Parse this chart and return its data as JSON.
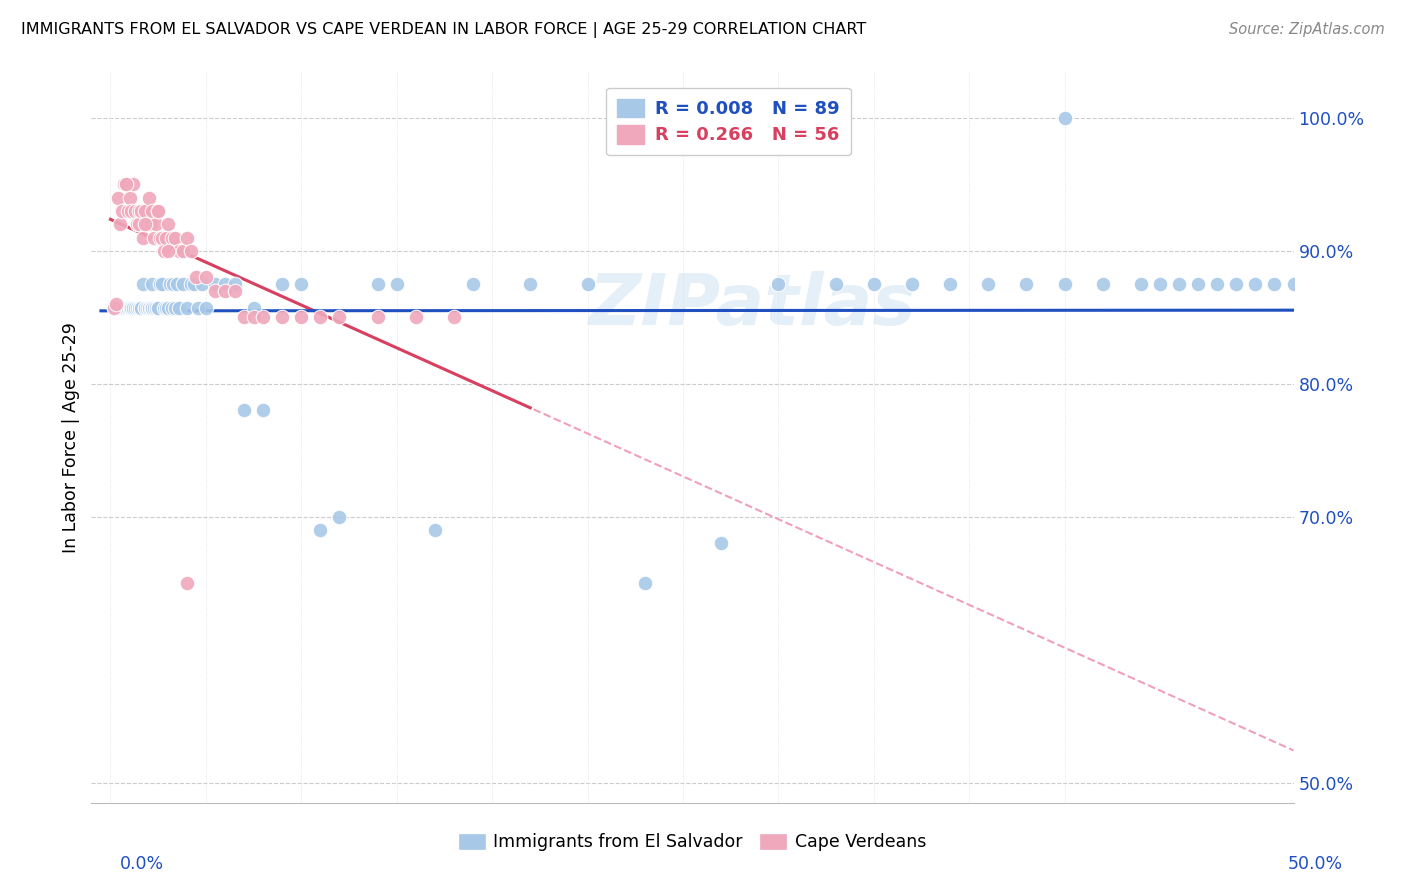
{
  "title": "IMMIGRANTS FROM EL SALVADOR VS CAPE VERDEAN IN LABOR FORCE | AGE 25-29 CORRELATION CHART",
  "source": "Source: ZipAtlas.com",
  "ylabel": "In Labor Force | Age 25-29",
  "y_tick_labels": [
    "100.0%",
    "90.0%",
    "80.0%",
    "70.0%",
    "50.0%"
  ],
  "y_tick_values": [
    1.0,
    0.9,
    0.8,
    0.7,
    0.5
  ],
  "x_range": [
    0.0,
    0.5
  ],
  "y_range": [
    0.5,
    1.03
  ],
  "blue_color": "#a8c8e8",
  "pink_color": "#f0a8bc",
  "blue_line_color": "#2050c0",
  "pink_line_color": "#d84060",
  "pink_dash_color": "#f0a0b8",
  "legend_blue_r": "0.008",
  "legend_blue_n": "89",
  "legend_pink_r": "0.266",
  "legend_pink_n": "56",
  "watermark": "ZIPatlas",
  "blue_scatter_x": [
    0.002,
    0.003,
    0.004,
    0.005,
    0.005,
    0.006,
    0.007,
    0.008,
    0.009,
    0.009,
    0.01,
    0.01,
    0.011,
    0.012,
    0.012,
    0.013,
    0.014,
    0.015,
    0.015,
    0.016,
    0.016,
    0.017,
    0.018,
    0.018,
    0.019,
    0.02,
    0.02,
    0.021,
    0.022,
    0.022,
    0.023,
    0.024,
    0.025,
    0.025,
    0.026,
    0.027,
    0.028,
    0.029,
    0.03,
    0.031,
    0.032,
    0.033,
    0.034,
    0.035,
    0.036,
    0.038,
    0.04,
    0.042,
    0.044,
    0.046,
    0.048,
    0.05,
    0.055,
    0.06,
    0.065,
    0.07,
    0.075,
    0.08,
    0.09,
    0.1,
    0.11,
    0.12,
    0.14,
    0.15,
    0.17,
    0.19,
    0.22,
    0.25,
    0.28,
    0.32,
    0.35,
    0.38,
    0.4,
    0.42,
    0.44,
    0.46,
    0.48,
    0.5,
    0.52,
    0.54,
    0.55,
    0.56,
    0.57,
    0.58,
    0.59,
    0.6,
    0.61,
    0.62,
    0.5
  ],
  "blue_scatter_y": [
    0.857,
    0.857,
    0.857,
    0.857,
    0.857,
    0.857,
    0.857,
    0.857,
    0.857,
    0.857,
    0.857,
    0.857,
    0.857,
    0.857,
    0.857,
    0.857,
    0.857,
    0.857,
    0.857,
    0.857,
    0.857,
    0.875,
    0.857,
    0.857,
    0.857,
    0.857,
    0.857,
    0.857,
    0.875,
    0.857,
    0.857,
    0.857,
    0.857,
    0.857,
    0.875,
    0.875,
    0.857,
    0.857,
    0.857,
    0.875,
    0.857,
    0.875,
    0.857,
    0.875,
    0.857,
    0.875,
    0.857,
    0.875,
    0.875,
    0.857,
    0.875,
    0.857,
    0.875,
    0.875,
    0.875,
    0.78,
    0.857,
    0.78,
    0.875,
    0.875,
    0.69,
    0.7,
    0.875,
    0.875,
    0.69,
    0.875,
    0.875,
    0.875,
    0.65,
    0.68,
    0.875,
    0.875,
    0.875,
    0.875,
    0.875,
    0.875,
    0.875,
    0.875,
    0.875,
    0.875,
    0.875,
    0.875,
    0.875,
    0.875,
    0.875,
    0.875,
    0.875,
    0.875,
    1.0
  ],
  "pink_scatter_x": [
    0.002,
    0.004,
    0.005,
    0.006,
    0.007,
    0.008,
    0.009,
    0.01,
    0.011,
    0.012,
    0.013,
    0.014,
    0.015,
    0.015,
    0.016,
    0.017,
    0.018,
    0.019,
    0.02,
    0.021,
    0.022,
    0.023,
    0.024,
    0.025,
    0.026,
    0.027,
    0.028,
    0.029,
    0.03,
    0.032,
    0.034,
    0.036,
    0.038,
    0.04,
    0.042,
    0.045,
    0.05,
    0.055,
    0.06,
    0.065,
    0.07,
    0.075,
    0.08,
    0.09,
    0.1,
    0.11,
    0.12,
    0.14,
    0.16,
    0.18,
    0.003,
    0.008,
    0.018,
    0.025,
    0.03,
    0.04
  ],
  "pink_scatter_y": [
    0.857,
    0.94,
    0.92,
    0.93,
    0.95,
    0.95,
    0.93,
    0.94,
    0.93,
    0.95,
    0.93,
    0.92,
    0.93,
    0.92,
    0.93,
    0.91,
    0.93,
    0.92,
    0.94,
    0.92,
    0.93,
    0.91,
    0.92,
    0.93,
    0.91,
    0.91,
    0.9,
    0.91,
    0.92,
    0.91,
    0.91,
    0.9,
    0.9,
    0.91,
    0.9,
    0.88,
    0.88,
    0.87,
    0.87,
    0.87,
    0.85,
    0.85,
    0.85,
    0.85,
    0.85,
    0.85,
    0.85,
    0.85,
    0.85,
    0.85,
    0.86,
    0.95,
    0.92,
    0.93,
    0.9,
    0.65
  ]
}
